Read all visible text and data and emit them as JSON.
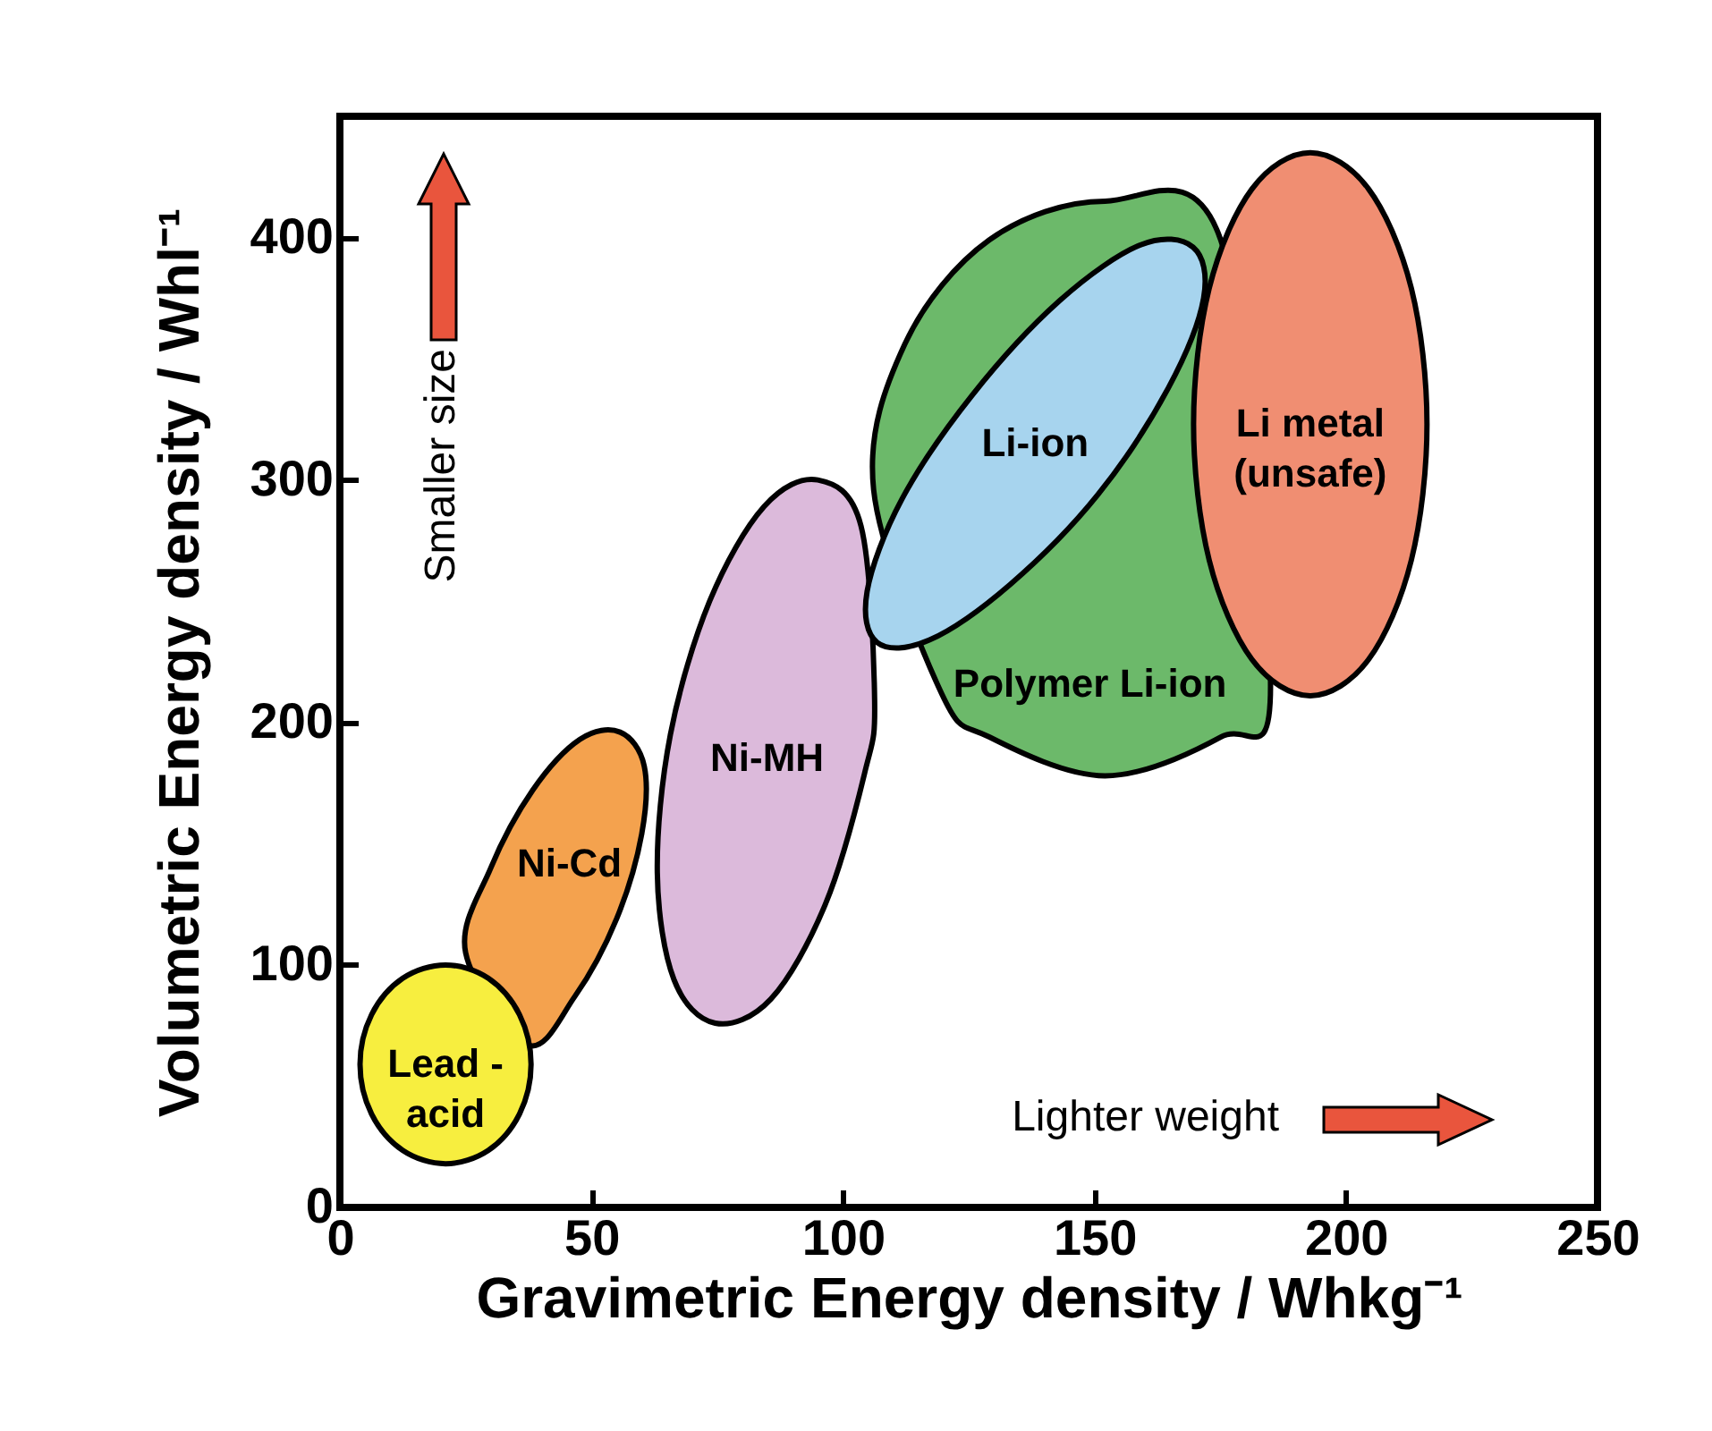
{
  "chart_data": {
    "type": "area",
    "xlabel": "Gravimetric Energy density / Whkg⁻¹",
    "ylabel": "Volumetric Energy density / Whl⁻¹",
    "xlim": [
      0,
      250
    ],
    "xticks": [
      0,
      50,
      100,
      150,
      200,
      250
    ],
    "ylim": [
      0,
      450
    ],
    "yticks": [
      0,
      100,
      200,
      300,
      400
    ],
    "grid": false,
    "series": [
      {
        "name": "Ni-Cd",
        "color": "#f4a24e",
        "x": [
          55.7,
          60.5,
          60.0,
          55.0,
          46.7,
          37.3,
          25.0,
          30.0,
          38.3,
          47.7
        ],
        "values": [
          196,
          182,
          154,
          119,
          87,
          67,
          105,
          140,
          172,
          193
        ]
      },
      {
        "name": "Lead -\nacid",
        "color": "#f7ee3f",
        "x": [
          38,
          35.7,
          29.5,
          21,
          12.5,
          6.3,
          4,
          6.3,
          12.5,
          21,
          29.5,
          35.7
        ],
        "values": [
          59,
          79.5,
          94.5,
          100,
          94.5,
          79.5,
          59,
          38.5,
          23.5,
          18,
          23.5,
          38.5
        ]
      },
      {
        "name": "Ni-MH",
        "color": "#dcbadb",
        "x": [
          95.0,
          103.6,
          106.3,
          104.3,
          96.5,
          85.7,
          74.6,
          66.4,
          63.1,
          65.7,
          73.5,
          84.3
        ],
        "values": [
          300,
          281,
          209,
          179,
          125,
          86,
          76,
          94,
          138,
          195,
          250,
          289
        ]
      },
      {
        "name": "Polymer Li-ion",
        "color": "#6cb96a",
        "x": [
          175.1,
          152.1,
          129.1,
          112.3,
          106.1,
          119.6,
          129.1,
          152.1,
          175.1,
          185
        ],
        "values": [
          399,
          415,
          399,
          356,
          296,
          212,
          194,
          178,
          194,
          215
        ]
      },
      {
        "name": "Li-ion",
        "color": "#a7d4ee",
        "x": [
          169.6,
          171.7,
          164.7,
          150.7,
          133.3,
          117.2,
          106.8,
          104.8,
          111.7,
          125.7,
          143.1,
          159.2
        ],
        "values": [
          396,
          375,
          338,
          294,
          257,
          234,
          233,
          254,
          292,
          335,
          374,
          397
        ]
      },
      {
        "name": "Li metal\n(unsafe)",
        "color": "#f08e72",
        "x": [
          216.1,
          213.0,
          204.5,
          192.9,
          181.3,
          172.8,
          169.7,
          172.8,
          181.3,
          192.9,
          204.5,
          213.0
        ],
        "values": [
          323,
          379,
          420,
          435,
          420,
          379,
          323,
          267,
          226,
          211,
          226,
          267
        ]
      }
    ],
    "annotations": [
      "Smaller size",
      "Lighter weight"
    ]
  }
}
